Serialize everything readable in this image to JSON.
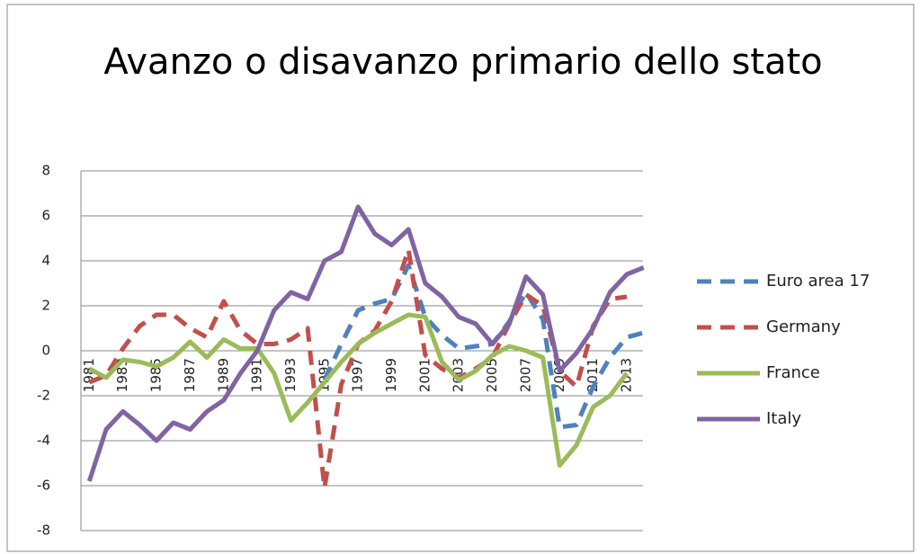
{
  "chart_data": {
    "type": "line",
    "title": "Avanzo o disavanzo primario dello stato",
    "categories": [
      "1981",
      null,
      "1983",
      null,
      "1985",
      null,
      "1987",
      null,
      "1989",
      null,
      "1991",
      null,
      "1993",
      null,
      "1995",
      null,
      "1997",
      null,
      "1999",
      null,
      "2001",
      null,
      "2003",
      null,
      "2005",
      null,
      "2007",
      null,
      "2009",
      null,
      "2011",
      null,
      "2013",
      null
    ],
    "ylim": [
      -8,
      8
    ],
    "yticks": [
      -8,
      -6,
      -4,
      -2,
      0,
      2,
      4,
      6,
      8
    ],
    "grid": true,
    "legend": "right",
    "series": [
      {
        "name": "Euro area 17",
        "color": "#4f81bd",
        "dash": true,
        "values": [
          null,
          null,
          null,
          null,
          null,
          null,
          null,
          null,
          null,
          null,
          null,
          null,
          null,
          null,
          -1.3,
          0.3,
          1.8,
          2.1,
          2.3,
          3.8,
          1.5,
          0.7,
          0.1,
          0.2,
          0.3,
          1.3,
          2.6,
          1.4,
          -3.4,
          -3.3,
          -1.6,
          -0.3,
          0.6,
          0.8
        ]
      },
      {
        "name": "Germany",
        "color": "#c0504d",
        "dash": true,
        "values": [
          -1.4,
          -1.1,
          0.1,
          1.1,
          1.6,
          1.6,
          1.0,
          0.6,
          2.2,
          0.9,
          0.3,
          0.3,
          0.5,
          1.0,
          -6.1,
          -1.5,
          0.3,
          0.9,
          2.2,
          4.5,
          -0.2,
          -0.8,
          -1.2,
          -0.8,
          -0.3,
          1.2,
          2.5,
          2.0,
          -0.9,
          -1.6,
          1.1,
          2.3,
          2.4,
          null
        ]
      },
      {
        "name": "France",
        "color": "#9bbb59",
        "dash": false,
        "values": [
          -0.8,
          -1.2,
          -0.4,
          -0.5,
          -0.7,
          -0.3,
          0.4,
          -0.3,
          0.5,
          0.1,
          0.1,
          -1.0,
          -3.1,
          -2.3,
          -1.4,
          -0.5,
          0.3,
          0.8,
          1.2,
          1.6,
          1.5,
          -0.5,
          -1.3,
          -0.9,
          -0.2,
          0.2,
          0.0,
          -0.3,
          -5.1,
          -4.2,
          -2.5,
          -2.0,
          -1.0,
          null
        ]
      },
      {
        "name": "Italy",
        "color": "#8064a2",
        "dash": false,
        "values": [
          -5.8,
          -3.5,
          -2.7,
          -3.3,
          -4.0,
          -3.2,
          -3.5,
          -2.7,
          -2.2,
          -1.0,
          0.0,
          1.8,
          2.6,
          2.3,
          4.0,
          4.4,
          6.4,
          5.2,
          4.7,
          5.4,
          3.0,
          2.4,
          1.5,
          1.2,
          0.3,
          1.2,
          3.3,
          2.5,
          -0.9,
          -0.1,
          1.0,
          2.6,
          3.4,
          3.7
        ]
      }
    ]
  }
}
